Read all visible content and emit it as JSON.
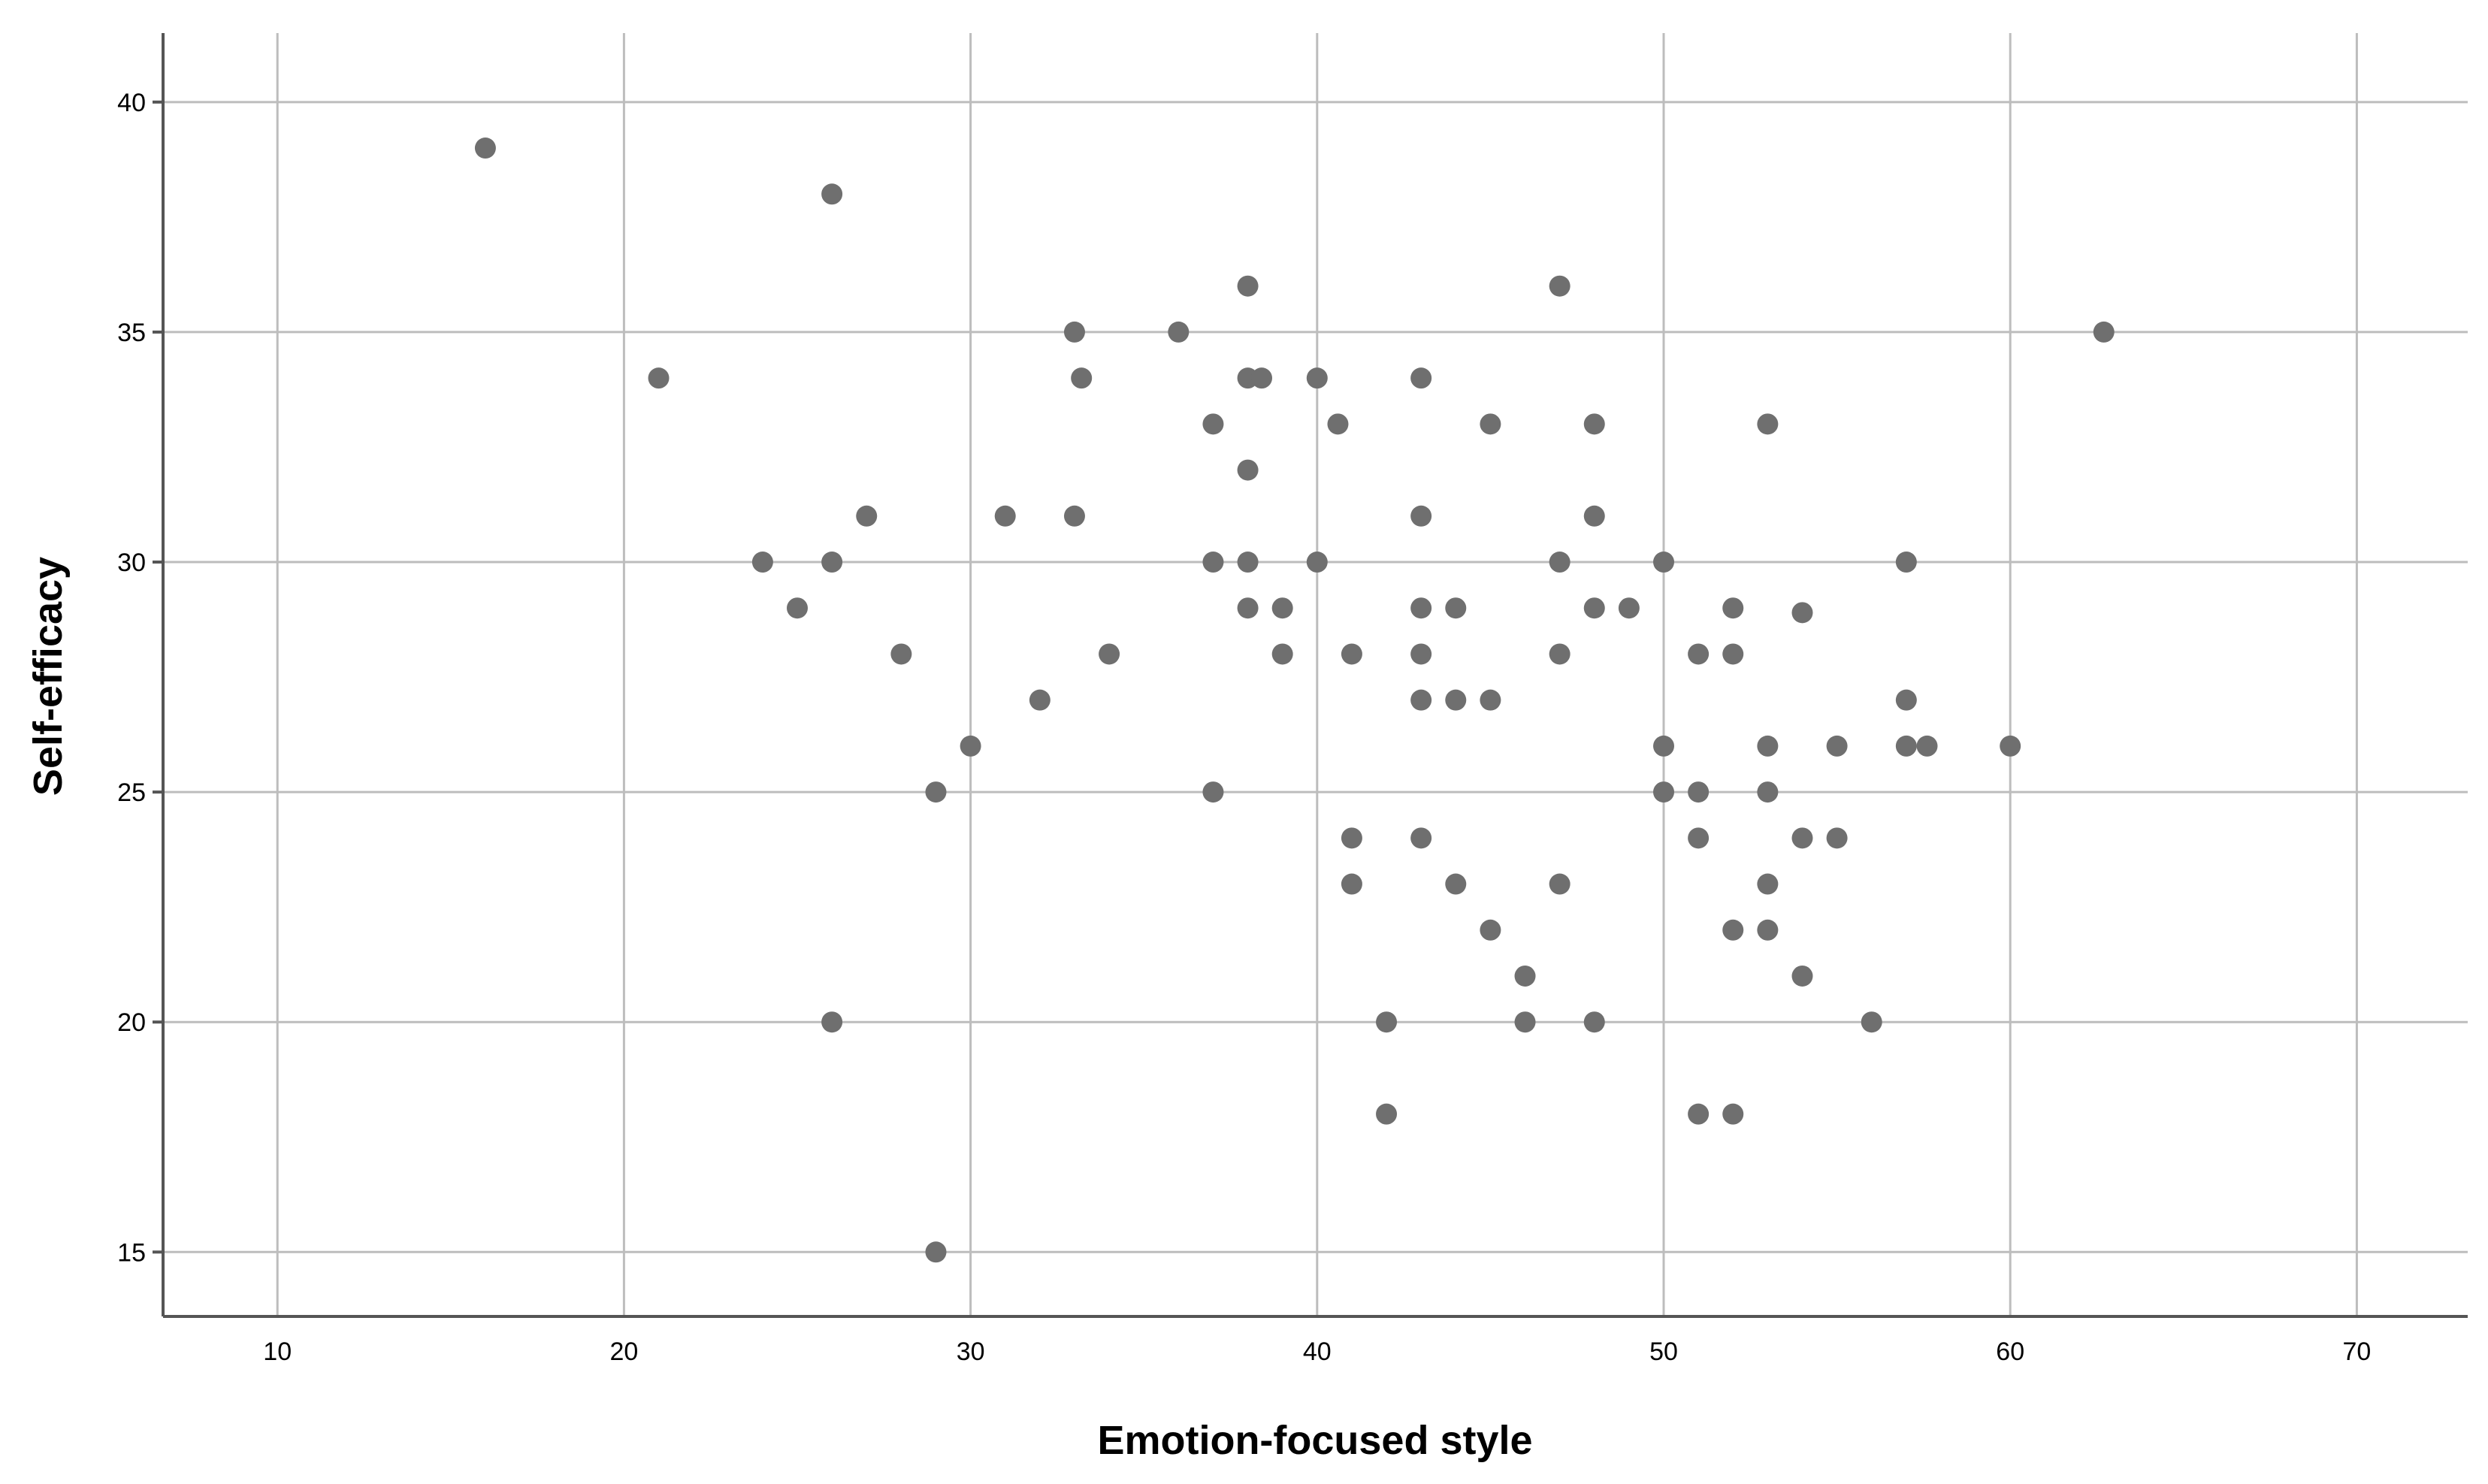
{
  "chart_data": {
    "type": "scatter",
    "xlabel": "Emotion-focused style",
    "ylabel": "Self-efficacy",
    "xlim": [
      6.7,
      73.2
    ],
    "ylim": [
      13.6,
      41.5
    ],
    "x_ticks": [
      10,
      20,
      30,
      40,
      50,
      60,
      70
    ],
    "y_ticks": [
      15,
      20,
      25,
      30,
      35,
      40
    ],
    "x_tick_labels": [
      "10",
      "20",
      "30",
      "40",
      "50",
      "60",
      "70"
    ],
    "y_tick_labels": [
      "15",
      "20",
      "25",
      "30",
      "35",
      "40"
    ],
    "grid": true,
    "marker_color": "#6f6f6f",
    "points": [
      {
        "x": 16,
        "y": 39
      },
      {
        "x": 26,
        "y": 38
      },
      {
        "x": 21,
        "y": 34
      },
      {
        "x": 24,
        "y": 30
      },
      {
        "x": 26,
        "y": 30
      },
      {
        "x": 27,
        "y": 31
      },
      {
        "x": 25,
        "y": 29
      },
      {
        "x": 28,
        "y": 28
      },
      {
        "x": 26,
        "y": 20
      },
      {
        "x": 29,
        "y": 25
      },
      {
        "x": 29,
        "y": 15
      },
      {
        "x": 30,
        "y": 26
      },
      {
        "x": 31,
        "y": 31
      },
      {
        "x": 32,
        "y": 27
      },
      {
        "x": 33,
        "y": 35
      },
      {
        "x": 33.2,
        "y": 34
      },
      {
        "x": 33,
        "y": 31
      },
      {
        "x": 34,
        "y": 28
      },
      {
        "x": 36,
        "y": 35
      },
      {
        "x": 37,
        "y": 33
      },
      {
        "x": 37,
        "y": 30
      },
      {
        "x": 37,
        "y": 25
      },
      {
        "x": 38,
        "y": 36
      },
      {
        "x": 38,
        "y": 34
      },
      {
        "x": 38.4,
        "y": 34
      },
      {
        "x": 38,
        "y": 32
      },
      {
        "x": 38,
        "y": 30
      },
      {
        "x": 38,
        "y": 29
      },
      {
        "x": 39,
        "y": 29
      },
      {
        "x": 39,
        "y": 28
      },
      {
        "x": 40,
        "y": 34
      },
      {
        "x": 40.6,
        "y": 33
      },
      {
        "x": 40,
        "y": 30
      },
      {
        "x": 41,
        "y": 28
      },
      {
        "x": 41,
        "y": 24
      },
      {
        "x": 41,
        "y": 23
      },
      {
        "x": 42,
        "y": 20
      },
      {
        "x": 42,
        "y": 18
      },
      {
        "x": 43,
        "y": 34
      },
      {
        "x": 43,
        "y": 31
      },
      {
        "x": 43,
        "y": 29
      },
      {
        "x": 43,
        "y": 28
      },
      {
        "x": 43,
        "y": 27
      },
      {
        "x": 43,
        "y": 24
      },
      {
        "x": 44,
        "y": 29
      },
      {
        "x": 44,
        "y": 27
      },
      {
        "x": 44,
        "y": 23
      },
      {
        "x": 45,
        "y": 33
      },
      {
        "x": 45,
        "y": 27
      },
      {
        "x": 45,
        "y": 22
      },
      {
        "x": 46,
        "y": 21
      },
      {
        "x": 46,
        "y": 20
      },
      {
        "x": 47,
        "y": 36
      },
      {
        "x": 47,
        "y": 30
      },
      {
        "x": 47,
        "y": 28
      },
      {
        "x": 47,
        "y": 23
      },
      {
        "x": 48,
        "y": 33
      },
      {
        "x": 48,
        "y": 31
      },
      {
        "x": 48,
        "y": 29
      },
      {
        "x": 48,
        "y": 20
      },
      {
        "x": 49,
        "y": 29
      },
      {
        "x": 50,
        "y": 30
      },
      {
        "x": 50,
        "y": 26
      },
      {
        "x": 50,
        "y": 25
      },
      {
        "x": 51,
        "y": 28
      },
      {
        "x": 51,
        "y": 25
      },
      {
        "x": 51,
        "y": 24
      },
      {
        "x": 51,
        "y": 18
      },
      {
        "x": 52,
        "y": 29
      },
      {
        "x": 52,
        "y": 28
      },
      {
        "x": 52,
        "y": 22
      },
      {
        "x": 52,
        "y": 18
      },
      {
        "x": 53,
        "y": 33
      },
      {
        "x": 53,
        "y": 26
      },
      {
        "x": 53,
        "y": 25
      },
      {
        "x": 53,
        "y": 23
      },
      {
        "x": 53,
        "y": 22
      },
      {
        "x": 54,
        "y": 28.9
      },
      {
        "x": 54,
        "y": 24
      },
      {
        "x": 54,
        "y": 21
      },
      {
        "x": 55,
        "y": 26
      },
      {
        "x": 55,
        "y": 24
      },
      {
        "x": 56,
        "y": 20
      },
      {
        "x": 57,
        "y": 30
      },
      {
        "x": 57,
        "y": 27
      },
      {
        "x": 57,
        "y": 26
      },
      {
        "x": 57.6,
        "y": 26
      },
      {
        "x": 60,
        "y": 26
      },
      {
        "x": 62.7,
        "y": 35
      }
    ]
  }
}
